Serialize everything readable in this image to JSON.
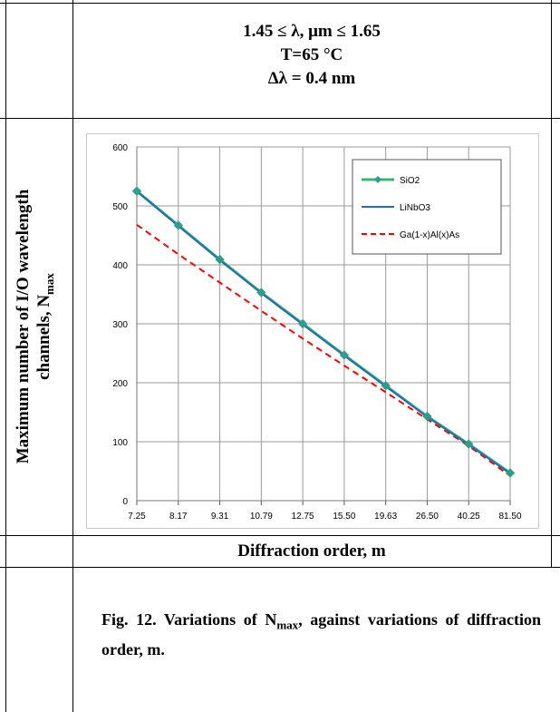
{
  "conditions": {
    "line1": "1.45 ≤ λ, μm ≤ 1.65",
    "line2": "T=65 °C",
    "line3": "Δλ = 0.4 nm"
  },
  "y_axis_label": {
    "line1": "Maximum number of I/O wavelength",
    "line2_main": "channels, N",
    "line2_sub": "max"
  },
  "x_axis_label": "Diffraction order, m",
  "caption": {
    "prefix": "Fig. 12. Variations of ",
    "n": "N",
    "sub": "max",
    "suffix": ", against variations of diffraction order, m."
  },
  "chart_data": {
    "type": "line",
    "categories": [
      "7.25",
      "8.17",
      "9.31",
      "10.79",
      "12.75",
      "15.50",
      "19.63",
      "26.50",
      "40.25",
      "81.50"
    ],
    "ylim": [
      0,
      600
    ],
    "yticks": [
      0,
      100,
      200,
      300,
      400,
      500,
      600
    ],
    "grid": true,
    "legend_position": "top-right",
    "series": [
      {
        "name": "SiO2",
        "color": "#3cb371",
        "style": "solid-diamond",
        "values": [
          525,
          467,
          409,
          353,
          300,
          247,
          195,
          143,
          96,
          47
        ]
      },
      {
        "name": "LiNbO3",
        "color": "#1f6fb5",
        "style": "solid",
        "values": [
          525,
          466,
          408,
          352,
          299,
          246,
          194,
          142,
          95,
          46
        ]
      },
      {
        "name": "Ga(1-x)Al(x)As",
        "color": "#ff0000",
        "style": "dashed",
        "values": [
          468,
          418,
          370,
          322,
          275,
          229,
          184,
          138,
          93,
          42
        ]
      }
    ]
  }
}
